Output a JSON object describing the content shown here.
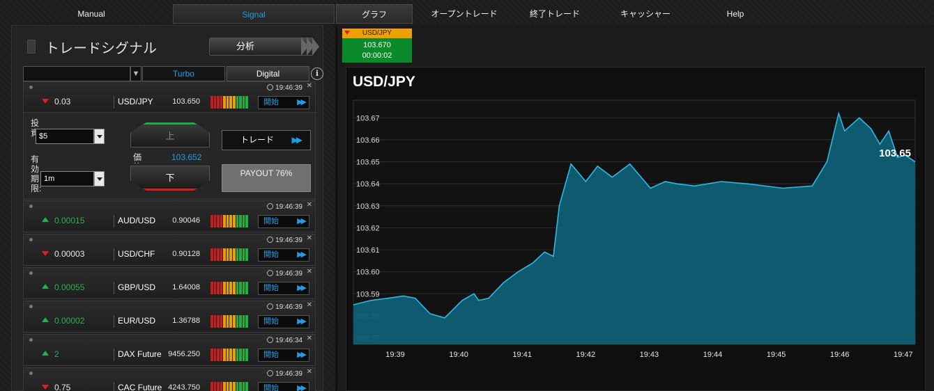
{
  "nav": {
    "manual": "Manual",
    "signal": "Signal",
    "graph": "グラフ",
    "open_trade": "オープントレード",
    "closed_trade": "終了トレード",
    "cashier": "キャッシャー",
    "help": "Help"
  },
  "left": {
    "title": "トレードシグナル",
    "analyze_label": "分析",
    "filter": {
      "turbo": "Turbo",
      "digital": "Digital"
    },
    "signals": [
      {
        "direction": "down",
        "change": "0.03",
        "pair": "USD/JPY",
        "price": "103.650",
        "time": "19:46:39",
        "start": "開始"
      },
      {
        "direction": "up",
        "change": "0.00015",
        "pair": "AUD/USD",
        "price": "0.90046",
        "time": "19:46:39",
        "start": "開始"
      },
      {
        "direction": "down",
        "change": "0.00003",
        "pair": "USD/CHF",
        "price": "0.90128",
        "time": "19:46:39",
        "start": "開始"
      },
      {
        "direction": "up",
        "change": "0.00055",
        "pair": "GBP/USD",
        "price": "1.64008",
        "time": "19:46:39",
        "start": "開始"
      },
      {
        "direction": "up",
        "change": "0.00002",
        "pair": "EUR/USD",
        "price": "1.36788",
        "time": "19:46:39",
        "start": "開始"
      },
      {
        "direction": "up",
        "change": "2",
        "pair": "DAX Future",
        "price": "9456.250",
        "time": "19:46:34",
        "start": "開始"
      },
      {
        "direction": "down",
        "change": "0.75",
        "pair": "CAC Future",
        "price": "4243.750",
        "time": "19:46:39",
        "start": "開始"
      }
    ],
    "trade": {
      "invest_label": "投資:",
      "invest_value": "$5",
      "expiry_label": "有効期限:",
      "expiry_value": "1m",
      "up_label": "上",
      "down_label": "下",
      "price_label": "価格",
      "price_value": "103.652",
      "trade_label": "トレード",
      "payout": "PAYOUT 76%"
    }
  },
  "ticker": {
    "pair": "USD/JPY",
    "price": "103.670",
    "timer": "00:00:02"
  },
  "colors": {
    "accent": "#1e9ee6",
    "up": "#22b24c",
    "down": "#e02020",
    "area": "#0f5f74",
    "line": "#2fb9e6",
    "ticker_head": "#f0a000",
    "ticker_body": "#0a8a2a"
  },
  "meter_colors": [
    "#c41e1e",
    "#c41e1e",
    "#c41e1e",
    "#c41e1e",
    "#e8a000",
    "#e8a000",
    "#e8a000",
    "#e8a000",
    "#20b040",
    "#20b040",
    "#20b040",
    "#20b040"
  ],
  "icons": {
    "info": "info-icon",
    "clock": "clock-icon",
    "close": "close-icon",
    "chevron": "chevron-down-icon"
  },
  "chart_data": {
    "type": "area",
    "title": "USD/JPY",
    "current_label": "103.65",
    "x_ticks": [
      "19:39",
      "19:40",
      "19:41",
      "19:42",
      "19:43",
      "19:44",
      "19:45",
      "19:46",
      "19:47"
    ],
    "y_ticks": [
      "103.57",
      "103.58",
      "103.59",
      "103.60",
      "103.61",
      "103.62",
      "103.63",
      "103.64",
      "103.65",
      "103.66",
      "103.67"
    ],
    "ylim": [
      103.567,
      103.678
    ],
    "xlim": [
      19.38,
      19.4755
    ],
    "x": [
      19.38,
      19.383,
      19.386,
      19.3885,
      19.3905,
      19.393,
      19.3955,
      19.3985,
      19.4005,
      19.4013,
      19.403,
      19.4055,
      19.408,
      19.4105,
      19.4125,
      19.414,
      19.415,
      19.417,
      19.4195,
      19.4215,
      19.424,
      19.427,
      19.4305,
      19.433,
      19.435,
      19.438,
      19.4425,
      19.447,
      19.453,
      19.458,
      19.4605,
      19.4625,
      19.4635,
      19.466,
      19.468,
      19.4695,
      19.471,
      19.4725,
      19.4738,
      19.4755
    ],
    "y": [
      103.585,
      103.587,
      103.588,
      103.589,
      103.588,
      103.581,
      103.579,
      103.587,
      103.59,
      103.587,
      103.588,
      103.595,
      103.6,
      103.604,
      103.609,
      103.607,
      103.63,
      103.649,
      103.641,
      103.648,
      103.643,
      103.649,
      103.638,
      103.641,
      103.64,
      103.639,
      103.641,
      103.64,
      103.638,
      103.639,
      103.65,
      103.672,
      103.664,
      103.67,
      103.665,
      103.658,
      103.664,
      103.652,
      103.653,
      103.65
    ]
  }
}
